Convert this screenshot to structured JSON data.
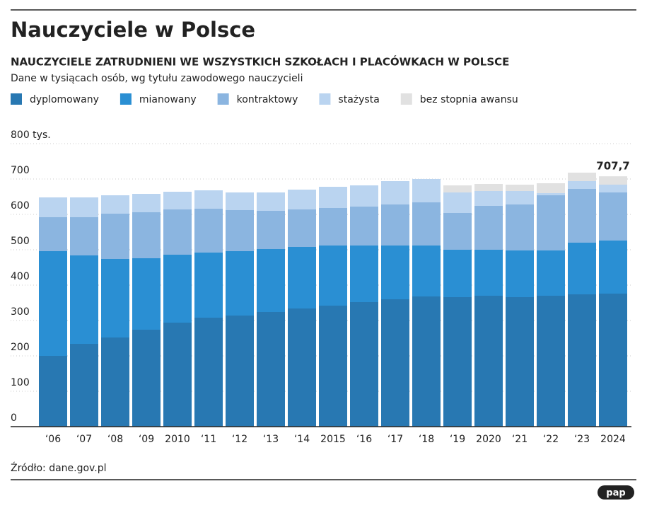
{
  "chart_data": {
    "type": "stacked_bar",
    "title": "Nauczyciele w Polsce",
    "subtitle": "NAUCZYCIELE ZATRUDNIENI WE WSZYSTKICH SZKOŁACH I PLACÓWKACH W POLSCE",
    "description": "Dane w tysiącach osób, wg tytułu zawodowego nauczycieli",
    "categories": [
      "‘06",
      "‘07",
      "‘08",
      "‘09",
      "2010",
      "‘11",
      "‘12",
      "‘13",
      "‘14",
      "2015",
      "‘16",
      "‘17",
      "‘18",
      "‘19",
      "2020",
      "‘21",
      "‘22",
      "‘23",
      "2024"
    ],
    "series": [
      {
        "name": "dyplomowany",
        "color": "#2878b2",
        "values": [
          200,
          234,
          252,
          274,
          294,
          308,
          314,
          324,
          334,
          342,
          352,
          360,
          368,
          366,
          370,
          366,
          370,
          374,
          376
        ]
      },
      {
        "name": "mianowany",
        "color": "#2a8fd3",
        "values": [
          296,
          250,
          222,
          202,
          192,
          184,
          182,
          178,
          174,
          170,
          160,
          152,
          144,
          134,
          130,
          132,
          128,
          146,
          150
        ]
      },
      {
        "name": "kontraktowy",
        "color": "#8bb5e0",
        "values": [
          96,
          108,
          128,
          130,
          128,
          124,
          116,
          108,
          106,
          106,
          110,
          116,
          122,
          104,
          124,
          130,
          156,
          152,
          136
        ]
      },
      {
        "name": "stażysta",
        "color": "#bad4f0",
        "values": [
          56,
          56,
          52,
          52,
          50,
          52,
          50,
          52,
          56,
          60,
          60,
          66,
          66,
          58,
          42,
          38,
          6,
          22,
          22
        ]
      },
      {
        "name": "bez stopnia awansu",
        "color": "#e1e1e1",
        "values": [
          0,
          0,
          0,
          0,
          0,
          0,
          0,
          0,
          0,
          0,
          0,
          0,
          0,
          20,
          20,
          18,
          28,
          24,
          23.7
        ]
      }
    ],
    "annotation": {
      "value": 707.7,
      "label": "707,7"
    },
    "ylim": [
      0,
      800
    ],
    "yticks": [
      0,
      100,
      200,
      300,
      400,
      500,
      600,
      700,
      {
        "value": 800,
        "label": "800 tys."
      }
    ],
    "grid": true,
    "source": "Źródło: dane.gov.pl",
    "logo": "pap"
  }
}
